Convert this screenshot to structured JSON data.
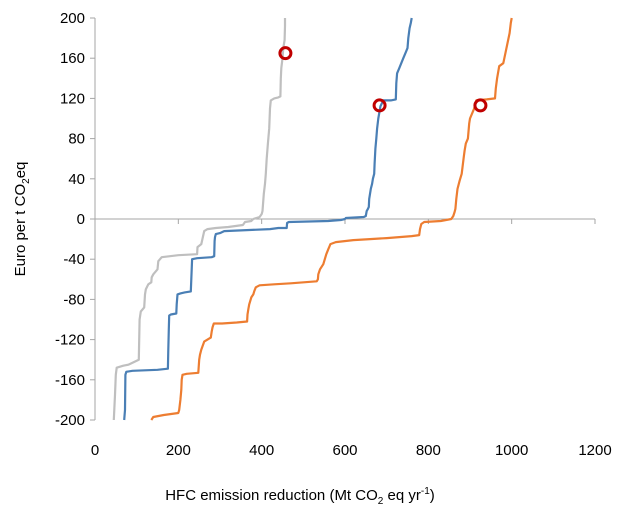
{
  "chart_data": {
    "type": "line",
    "xlabel_parts": [
      "HFC emission reduction (Mt CO",
      "2",
      " eq yr",
      "-1",
      ")"
    ],
    "ylabel_parts": [
      "Euro per t CO",
      "2",
      "eq"
    ],
    "xlim": [
      0,
      1200
    ],
    "ylim": [
      -200,
      200
    ],
    "x_ticks": [
      0,
      200,
      400,
      600,
      800,
      1000,
      1200
    ],
    "y_ticks": [
      200,
      160,
      120,
      80,
      40,
      0,
      -40,
      -80,
      -120,
      -160,
      -200
    ],
    "grid": false,
    "series": [
      {
        "color": "#bfbfbf",
        "points": [
          [
            45,
            -200
          ],
          [
            48,
            -175
          ],
          [
            50,
            -155
          ],
          [
            52,
            -148
          ],
          [
            68,
            -146
          ],
          [
            80,
            -145
          ],
          [
            105,
            -140
          ],
          [
            106,
            -120
          ],
          [
            107,
            -100
          ],
          [
            110,
            -92
          ],
          [
            118,
            -88
          ],
          [
            120,
            -75
          ],
          [
            122,
            -70
          ],
          [
            128,
            -65
          ],
          [
            135,
            -63
          ],
          [
            136,
            -58
          ],
          [
            140,
            -55
          ],
          [
            150,
            -50
          ],
          [
            152,
            -42
          ],
          [
            160,
            -38
          ],
          [
            200,
            -36
          ],
          [
            245,
            -35
          ],
          [
            246,
            -28
          ],
          [
            255,
            -25
          ],
          [
            262,
            -12
          ],
          [
            270,
            -10
          ],
          [
            290,
            -9
          ],
          [
            320,
            -8
          ],
          [
            355,
            -6
          ],
          [
            360,
            -3
          ],
          [
            375,
            -2
          ],
          [
            380,
            0
          ],
          [
            395,
            2
          ],
          [
            400,
            5
          ],
          [
            402,
            8
          ],
          [
            405,
            25
          ],
          [
            408,
            35
          ],
          [
            410,
            45
          ],
          [
            412,
            60
          ],
          [
            415,
            75
          ],
          [
            418,
            90
          ],
          [
            420,
            110
          ],
          [
            422,
            118
          ],
          [
            430,
            120
          ],
          [
            440,
            121
          ],
          [
            445,
            122
          ],
          [
            446,
            140
          ],
          [
            447,
            150
          ],
          [
            450,
            160
          ],
          [
            452,
            170
          ],
          [
            455,
            178
          ],
          [
            456,
            192
          ],
          [
            456,
            200
          ]
        ],
        "marker": [
          457,
          165
        ]
      },
      {
        "color": "#4a7fb5",
        "points": [
          [
            70,
            -200
          ],
          [
            72,
            -190
          ],
          [
            73,
            -155
          ],
          [
            75,
            -152
          ],
          [
            90,
            -151
          ],
          [
            150,
            -150
          ],
          [
            175,
            -149
          ],
          [
            176,
            -130
          ],
          [
            177,
            -110
          ],
          [
            178,
            -96
          ],
          [
            182,
            -95
          ],
          [
            195,
            -94
          ],
          [
            196,
            -85
          ],
          [
            198,
            -75
          ],
          [
            205,
            -74
          ],
          [
            215,
            -73
          ],
          [
            230,
            -72
          ],
          [
            231,
            -60
          ],
          [
            232,
            -50
          ],
          [
            233,
            -40
          ],
          [
            245,
            -39
          ],
          [
            280,
            -38
          ],
          [
            286,
            -37
          ],
          [
            287,
            -22
          ],
          [
            288,
            -18
          ],
          [
            290,
            -15
          ],
          [
            300,
            -14
          ],
          [
            310,
            -12
          ],
          [
            420,
            -10
          ],
          [
            440,
            -9
          ],
          [
            460,
            -9
          ],
          [
            461,
            -4
          ],
          [
            465,
            -3
          ],
          [
            560,
            -2
          ],
          [
            590,
            -1
          ],
          [
            600,
            0
          ],
          [
            602,
            1
          ],
          [
            645,
            2
          ],
          [
            650,
            3
          ],
          [
            652,
            8
          ],
          [
            655,
            10
          ],
          [
            657,
            12
          ],
          [
            658,
            20
          ],
          [
            662,
            30
          ],
          [
            665,
            35
          ],
          [
            667,
            40
          ],
          [
            670,
            45
          ],
          [
            671,
            55
          ],
          [
            673,
            70
          ],
          [
            675,
            80
          ],
          [
            677,
            90
          ],
          [
            680,
            100
          ],
          [
            685,
            112
          ],
          [
            692,
            118
          ],
          [
            700,
            118
          ],
          [
            710,
            118
          ],
          [
            722,
            119
          ],
          [
            723,
            135
          ],
          [
            725,
            145
          ],
          [
            730,
            150
          ],
          [
            740,
            160
          ],
          [
            745,
            165
          ],
          [
            750,
            170
          ],
          [
            752,
            180
          ],
          [
            755,
            190
          ],
          [
            758,
            195
          ],
          [
            760,
            200
          ]
        ],
        "marker": [
          683,
          113
        ]
      },
      {
        "color": "#ed7d31",
        "points": [
          [
            135,
            -200
          ],
          [
            140,
            -197
          ],
          [
            165,
            -195
          ],
          [
            200,
            -193
          ],
          [
            202,
            -190
          ],
          [
            205,
            -180
          ],
          [
            207,
            -170
          ],
          [
            208,
            -160
          ],
          [
            210,
            -155
          ],
          [
            220,
            -154
          ],
          [
            248,
            -153
          ],
          [
            250,
            -140
          ],
          [
            252,
            -135
          ],
          [
            255,
            -130
          ],
          [
            262,
            -122
          ],
          [
            270,
            -120
          ],
          [
            278,
            -118
          ],
          [
            280,
            -112
          ],
          [
            282,
            -108
          ],
          [
            285,
            -104
          ],
          [
            305,
            -104
          ],
          [
            340,
            -103
          ],
          [
            365,
            -102
          ],
          [
            366,
            -95
          ],
          [
            368,
            -90
          ],
          [
            370,
            -85
          ],
          [
            375,
            -78
          ],
          [
            380,
            -75
          ],
          [
            382,
            -72
          ],
          [
            386,
            -68
          ],
          [
            395,
            -66
          ],
          [
            430,
            -65
          ],
          [
            470,
            -64
          ],
          [
            532,
            -62
          ],
          [
            535,
            -60
          ],
          [
            536,
            -55
          ],
          [
            540,
            -50
          ],
          [
            548,
            -45
          ],
          [
            550,
            -42
          ],
          [
            555,
            -35
          ],
          [
            560,
            -30
          ],
          [
            562,
            -28
          ],
          [
            565,
            -25
          ],
          [
            578,
            -23
          ],
          [
            620,
            -21
          ],
          [
            660,
            -20
          ],
          [
            700,
            -19
          ],
          [
            760,
            -17
          ],
          [
            778,
            -16
          ],
          [
            780,
            -10
          ],
          [
            783,
            -5
          ],
          [
            790,
            -3
          ],
          [
            830,
            -2
          ],
          [
            855,
            0
          ],
          [
            860,
            3
          ],
          [
            863,
            7
          ],
          [
            865,
            10
          ],
          [
            867,
            20
          ],
          [
            870,
            30
          ],
          [
            875,
            38
          ],
          [
            880,
            45
          ],
          [
            885,
            62
          ],
          [
            887,
            68
          ],
          [
            890,
            75
          ],
          [
            895,
            80
          ],
          [
            898,
            95
          ],
          [
            900,
            100
          ],
          [
            910,
            110
          ],
          [
            915,
            118
          ],
          [
            940,
            119
          ],
          [
            960,
            120
          ],
          [
            962,
            130
          ],
          [
            965,
            140
          ],
          [
            970,
            152
          ],
          [
            980,
            155
          ],
          [
            985,
            165
          ],
          [
            990,
            175
          ],
          [
            995,
            185
          ],
          [
            998,
            195
          ],
          [
            1000,
            200
          ]
        ],
        "marker": [
          925,
          113
        ]
      }
    ],
    "marker_color": "#c00000"
  }
}
